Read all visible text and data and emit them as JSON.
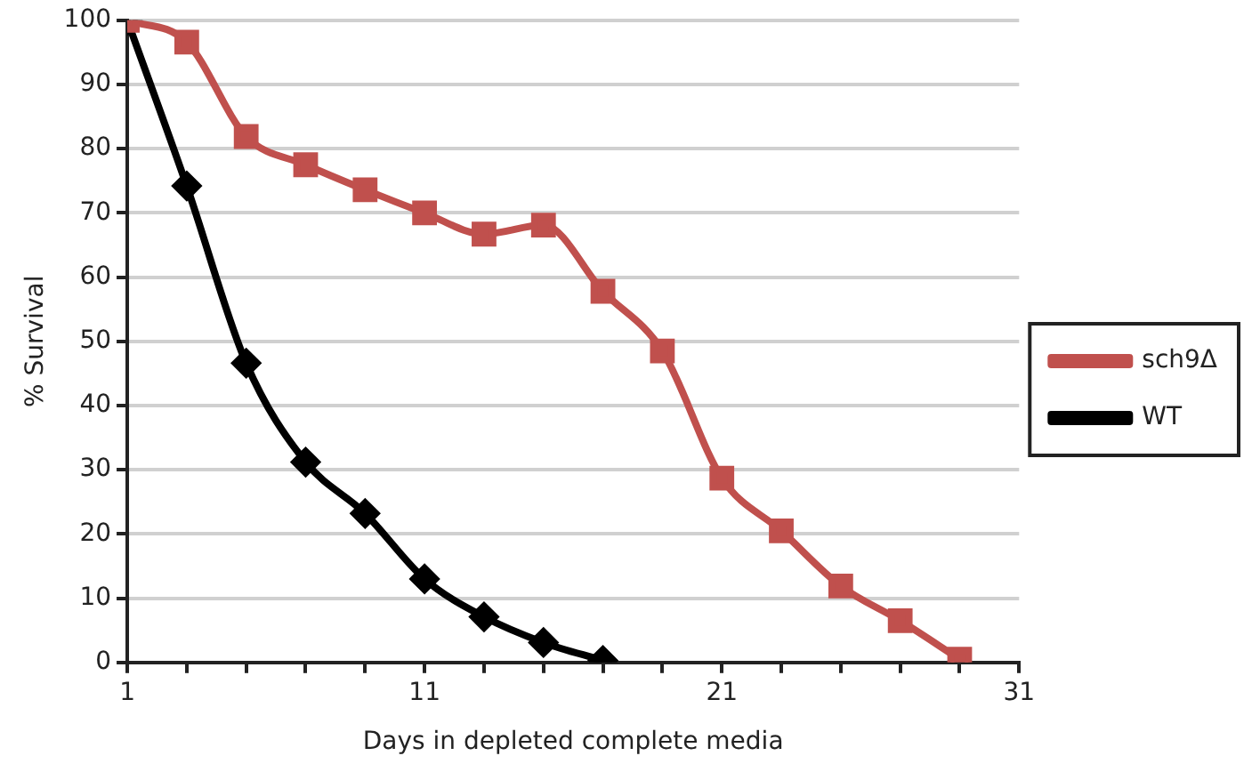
{
  "chart_data": {
    "type": "line",
    "xlabel": "Days in depleted complete media",
    "ylabel": "% Survival",
    "xlim": [
      1,
      31
    ],
    "xticks": [
      1,
      {
        "value": 3,
        "label": null
      },
      {
        "value": 5,
        "label": null
      },
      {
        "value": 7,
        "label": null
      },
      {
        "value": 9,
        "label": null
      },
      11,
      {
        "value": 13,
        "label": null
      },
      {
        "value": 15,
        "label": null
      },
      {
        "value": 17,
        "label": null
      },
      {
        "value": 19,
        "label": null
      },
      21,
      {
        "value": 23,
        "label": null
      },
      {
        "value": 25,
        "label": null
      },
      {
        "value": 27,
        "label": null
      },
      {
        "value": 29,
        "label": null
      },
      31
    ],
    "ylim": [
      0,
      100
    ],
    "yticks": [
      0,
      10,
      20,
      30,
      40,
      50,
      60,
      70,
      80,
      90,
      100
    ],
    "grid": "y",
    "legend": "right",
    "series": [
      {
        "name": "WT",
        "color": "#000000",
        "marker": "diamond",
        "x": [
          1,
          3,
          5,
          7,
          9,
          11,
          13,
          15,
          17
        ],
        "values": [
          100,
          74.2,
          46.6,
          31.2,
          23.2,
          13,
          7.1,
          3.1,
          0.3
        ]
      },
      {
        "name": "sch9Δ",
        "color": "#c0504d",
        "marker": "square",
        "x": [
          1,
          3,
          5,
          7,
          9,
          11,
          13,
          15,
          17,
          19,
          21,
          23,
          25,
          27,
          29
        ],
        "values": [
          100,
          96.6,
          81.9,
          77.5,
          73.6,
          70,
          66.7,
          68.1,
          57.8,
          48.5,
          28.7,
          20.5,
          11.9,
          6.5,
          0.5
        ]
      }
    ]
  }
}
